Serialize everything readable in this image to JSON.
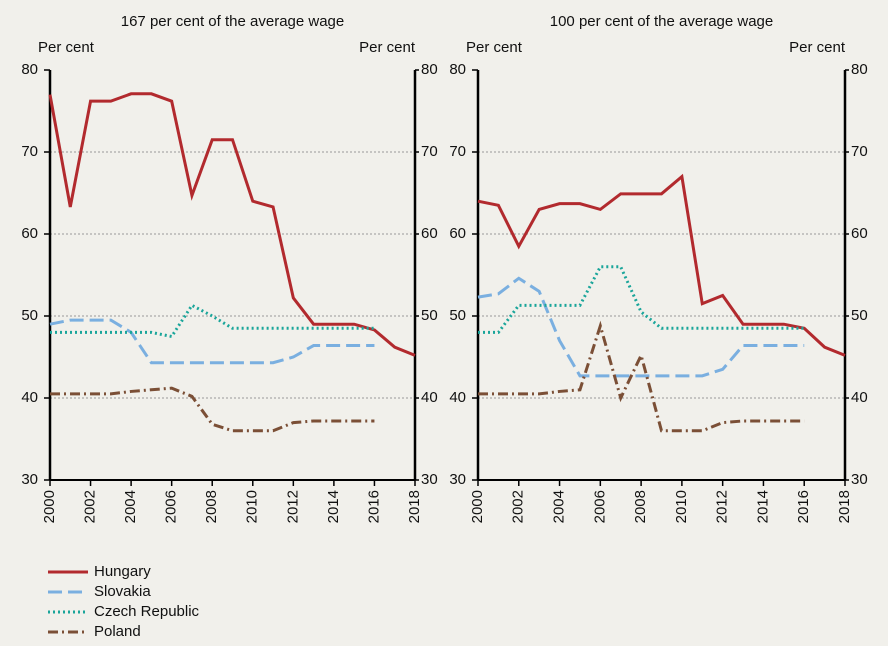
{
  "chart_data": [
    {
      "type": "line",
      "title": "167 per cent of the average wage",
      "ylabel": "Per cent",
      "y2label": "Per cent",
      "x": [
        2000,
        2001,
        2002,
        2003,
        2004,
        2005,
        2006,
        2007,
        2008,
        2009,
        2010,
        2011,
        2012,
        2013,
        2014,
        2015,
        2016,
        2017,
        2018
      ],
      "xlim": [
        2000,
        2018
      ],
      "xticks": [
        2000,
        2002,
        2004,
        2006,
        2008,
        2010,
        2012,
        2014,
        2016,
        2018
      ],
      "ylim": [
        30,
        80
      ],
      "yticks": [
        30,
        40,
        50,
        60,
        70,
        80
      ],
      "y2lim": [
        30,
        80
      ],
      "y2ticks": [
        30,
        40,
        50,
        60,
        70,
        80
      ],
      "grid": true,
      "legend": true,
      "series": [
        {
          "name": "Hungary",
          "color": "#b22a2e",
          "style": "solid",
          "values": [
            77,
            63.3,
            76.2,
            76.2,
            77.1,
            77.1,
            76.2,
            64.7,
            71.5,
            71.5,
            64,
            63.3,
            52.2,
            49,
            49,
            49,
            48.3,
            46.2,
            45.2
          ]
        },
        {
          "name": "Slovakia",
          "color": "#7aafe0",
          "style": "dashed",
          "values": [
            49,
            49.5,
            49.5,
            49.5,
            48,
            44.3,
            44.3,
            44.3,
            44.3,
            44.3,
            44.3,
            44.3,
            45,
            46.4,
            46.4,
            46.4,
            46.4,
            null,
            null
          ]
        },
        {
          "name": "Czech Republic",
          "color": "#1aa59a",
          "style": "dotted",
          "values": [
            48,
            48,
            48,
            48,
            48,
            48,
            47.5,
            51.3,
            50,
            48.5,
            48.5,
            48.5,
            48.5,
            48.5,
            48.5,
            48.5,
            48.5,
            null,
            null
          ]
        },
        {
          "name": "Poland",
          "color": "#7b4f36",
          "style": "dashdot",
          "values": [
            40.5,
            40.5,
            40.5,
            40.5,
            40.8,
            41,
            41.2,
            40.2,
            36.8,
            36,
            36,
            36,
            37,
            37.2,
            37.2,
            37.2,
            37.2,
            null,
            null
          ]
        }
      ]
    },
    {
      "type": "line",
      "title": "100 per cent of the average wage",
      "ylabel": "Per cent",
      "y2label": "Per cent",
      "x": [
        2000,
        2001,
        2002,
        2003,
        2004,
        2005,
        2006,
        2007,
        2008,
        2009,
        2010,
        2011,
        2012,
        2013,
        2014,
        2015,
        2016,
        2017,
        2018
      ],
      "xlim": [
        2000,
        2018
      ],
      "xticks": [
        2000,
        2002,
        2004,
        2006,
        2008,
        2010,
        2012,
        2014,
        2016,
        2018
      ],
      "ylim": [
        30,
        80
      ],
      "yticks": [
        30,
        40,
        50,
        60,
        70,
        80
      ],
      "y2lim": [
        30,
        80
      ],
      "y2ticks": [
        30,
        40,
        50,
        60,
        70,
        80
      ],
      "grid": true,
      "legend": false,
      "series": [
        {
          "name": "Hungary",
          "color": "#b22a2e",
          "style": "solid",
          "values": [
            64,
            63.5,
            58.5,
            63,
            63.7,
            63.7,
            63,
            64.9,
            64.9,
            64.9,
            67,
            51.5,
            52.5,
            49,
            49,
            49,
            48.5,
            46.2,
            45.2
          ]
        },
        {
          "name": "Slovakia",
          "color": "#7aafe0",
          "style": "dashed",
          "values": [
            52.3,
            52.7,
            54.6,
            53,
            47,
            42.7,
            42.7,
            42.7,
            42.7,
            42.7,
            42.7,
            42.7,
            43.5,
            46.4,
            46.4,
            46.4,
            46.4,
            null,
            null
          ]
        },
        {
          "name": "Czech Republic",
          "color": "#1aa59a",
          "style": "dotted",
          "values": [
            48,
            48,
            51.3,
            51.3,
            51.3,
            51.3,
            56,
            56,
            50.5,
            48.5,
            48.5,
            48.5,
            48.5,
            48.5,
            48.5,
            48.5,
            48.5,
            null,
            null
          ]
        },
        {
          "name": "Poland",
          "color": "#7b4f36",
          "style": "dashdot",
          "values": [
            40.5,
            40.5,
            40.5,
            40.5,
            40.8,
            41,
            48.8,
            40,
            45.2,
            36,
            36,
            36,
            37,
            37.2,
            37.2,
            37.2,
            37.2,
            null,
            null
          ]
        }
      ]
    }
  ]
}
